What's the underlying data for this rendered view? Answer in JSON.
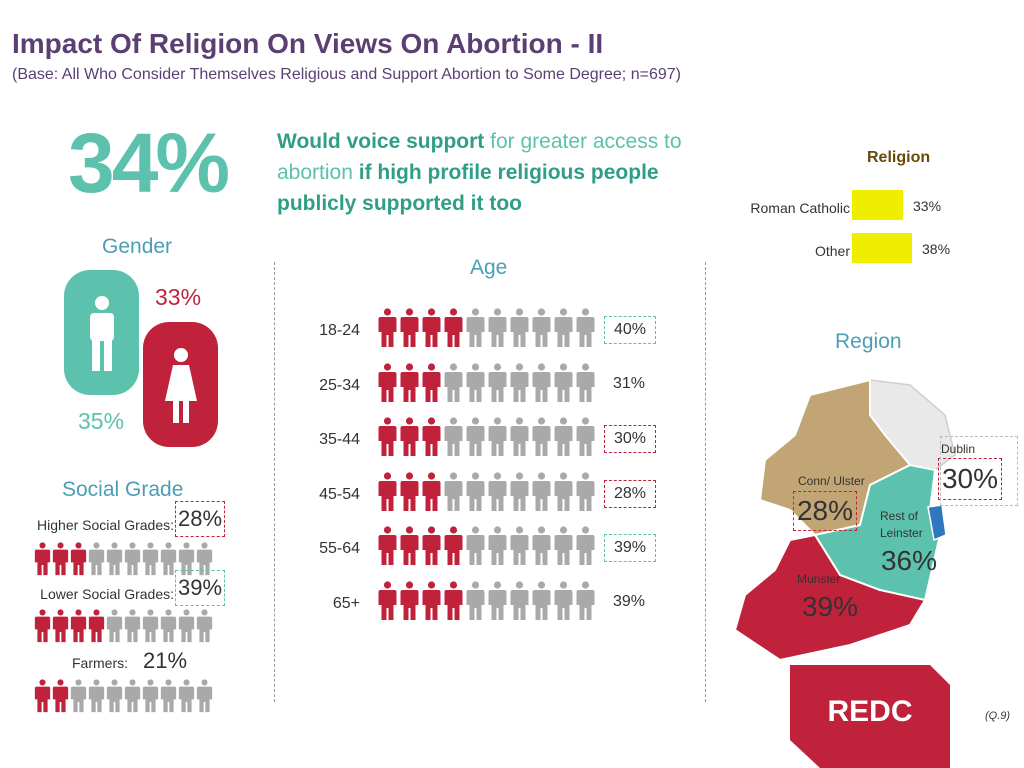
{
  "title": "Impact Of Religion On Views On Abortion - II",
  "subtitle": "(Base: All Who Consider Themselves Religious and Support Abortion to Some Degree; n=697)",
  "headline": {
    "big_percent": "34%",
    "part1": "Would voice support",
    "part2": " for greater access to abortion ",
    "part3": "if high profile religious people publicly supported it too"
  },
  "colors": {
    "purple": "#5b3f73",
    "teal": "#5cc2ad",
    "red": "#c0223b",
    "grey": "#a9a9a9",
    "yellow": "#f0ee00"
  },
  "footnote": "(Q.9)",
  "logo": "REDC",
  "chart_data": [
    {
      "type": "bar",
      "title": "Gender",
      "categories": [
        "male-icon",
        "female-icon"
      ],
      "values": [
        35,
        33
      ],
      "labels": [
        "35%",
        "33%"
      ]
    },
    {
      "type": "bar",
      "title": "Age",
      "categories": [
        "18-24",
        "25-34",
        "35-44",
        "45-54",
        "55-64",
        "65+"
      ],
      "values": [
        40,
        31,
        30,
        28,
        39,
        39
      ],
      "labels": [
        "40%",
        "31%",
        "30%",
        "28%",
        "39%",
        "39%"
      ],
      "highlight": [
        "teal",
        "none",
        "red",
        "red",
        "teal",
        "none"
      ]
    },
    {
      "type": "bar",
      "title": "Social Grade",
      "categories": [
        "Higher Social Grades:",
        "Lower Social Grades:",
        "Farmers:"
      ],
      "values": [
        28,
        39,
        21
      ],
      "labels": [
        "28%",
        "39%",
        "21%"
      ],
      "highlight": [
        "red",
        "teal",
        "none"
      ]
    },
    {
      "type": "bar",
      "title": "Religion",
      "categories": [
        "Roman Catholic",
        "Other"
      ],
      "values": [
        33,
        38
      ],
      "labels": [
        "33%",
        "38%"
      ]
    },
    {
      "type": "bar",
      "title": "Region",
      "categories": [
        "Dublin",
        "Conn/ Ulster",
        "Rest of Leinster",
        "Munster"
      ],
      "values": [
        30,
        28,
        36,
        39
      ],
      "labels": [
        "30%",
        "28%",
        "36%",
        "39%"
      ],
      "highlight": [
        "red",
        "red",
        "none",
        "red"
      ]
    }
  ]
}
